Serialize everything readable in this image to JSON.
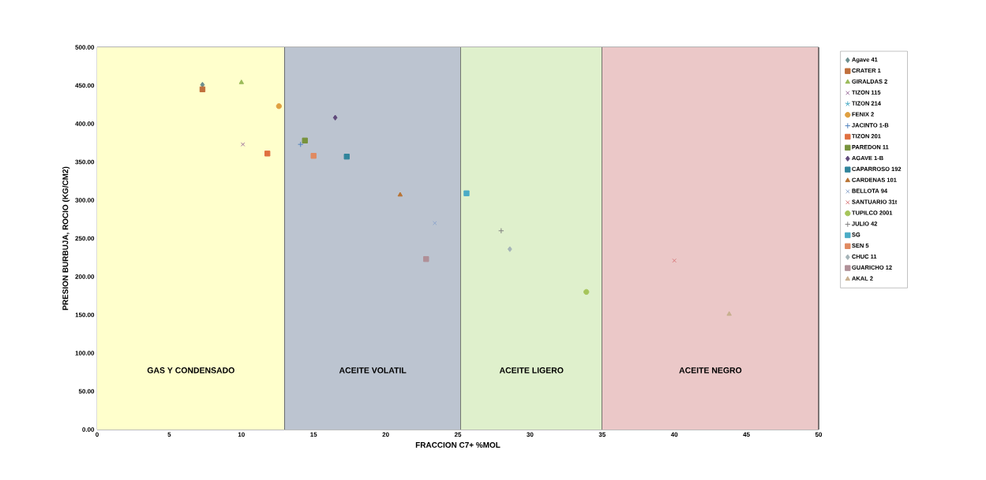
{
  "chart_data": {
    "type": "scatter",
    "xlabel": "FRACCION C7+ %MOL",
    "ylabel": "PRESION BURBUJA, ROCIO (KG/CM2)",
    "xlim": [
      0,
      50
    ],
    "xticks": [
      0,
      5,
      10,
      15,
      20,
      25,
      30,
      35,
      40,
      45,
      50
    ],
    "ylim": [
      0,
      500
    ],
    "yticks": [
      {
        "value": 0,
        "label": "0.00"
      },
      {
        "value": 50,
        "label": "50.00"
      },
      {
        "value": 100,
        "label": "100.00"
      },
      {
        "value": 150,
        "label": "150.00"
      },
      {
        "value": 200,
        "label": "200.00"
      },
      {
        "value": 250,
        "label": "250.00"
      },
      {
        "value": 300,
        "label": "300.00"
      },
      {
        "value": 350,
        "label": "350.00"
      },
      {
        "value": 400,
        "label": "400.00"
      },
      {
        "value": 450,
        "label": "450.00"
      },
      {
        "value": 500,
        "label": "500.00"
      }
    ],
    "grid": "y",
    "legend": "right",
    "bands": [
      {
        "axis": "x",
        "from": 0,
        "to": 13,
        "label": "GAS Y CONDENSADO",
        "color": "#ffffcc"
      },
      {
        "axis": "x",
        "from": 13,
        "to": 25.2,
        "label": "ACEITE VOLATIL",
        "color": "#bcc4d0"
      },
      {
        "axis": "x",
        "from": 25.2,
        "to": 35,
        "label": "ACEITE LIGERO",
        "color": "#dff0cc"
      },
      {
        "axis": "x",
        "from": 35,
        "to": 50,
        "label": "ACEITE NEGRO",
        "color": "#ebc8c8"
      }
    ],
    "series": [
      {
        "name": "Agave 41",
        "color": "#6b8e8e",
        "marker": "diamond",
        "x": [
          7.3
        ],
        "values": [
          451
        ]
      },
      {
        "name": "CRATER 1",
        "color": "#c0703c",
        "marker": "square",
        "x": [
          7.3
        ],
        "values": [
          445
        ]
      },
      {
        "name": "GIRALDAS 2",
        "color": "#9bbb59",
        "marker": "triangle",
        "x": [
          10.0
        ],
        "values": [
          454
        ]
      },
      {
        "name": "TIZON 115",
        "color": "#9c6f9c",
        "marker": "cross",
        "x": [
          10.1
        ],
        "values": [
          373
        ]
      },
      {
        "name": "TIZON 214",
        "color": "#4bacc6",
        "marker": "star",
        "x": [
          null
        ],
        "values": [
          null
        ]
      },
      {
        "name": "FENIX 2",
        "color": "#e0a040",
        "marker": "circle",
        "x": [
          12.6
        ],
        "values": [
          423
        ]
      },
      {
        "name": "JACINTO 1-B",
        "color": "#4f81bd",
        "marker": "plus",
        "x": [
          14.1
        ],
        "values": [
          373
        ]
      },
      {
        "name": "TIZON 201",
        "color": "#e07040",
        "marker": "square",
        "x": [
          11.8
        ],
        "values": [
          361
        ]
      },
      {
        "name": "PAREDON 11",
        "color": "#77933c",
        "marker": "square",
        "x": [
          14.4
        ],
        "values": [
          378
        ]
      },
      {
        "name": "AGAVE 1-B",
        "color": "#604a7b",
        "marker": "diamond",
        "x": [
          16.5
        ],
        "values": [
          408
        ]
      },
      {
        "name": "CAPARROSO 192",
        "color": "#31859c",
        "marker": "square",
        "x": [
          17.3
        ],
        "values": [
          357
        ]
      },
      {
        "name": "CARDENAS 101",
        "color": "#b87333",
        "marker": "triangle",
        "x": [
          21.0
        ],
        "values": [
          307
        ]
      },
      {
        "name": "BELLOTA 94",
        "color": "#8ea6cc",
        "marker": "cross",
        "x": [
          23.4
        ],
        "values": [
          270
        ]
      },
      {
        "name": "SANTUARIO 31t",
        "color": "#d9797a",
        "marker": "cross",
        "x": [
          40.0
        ],
        "values": [
          221
        ]
      },
      {
        "name": "TUPILCO 2001",
        "color": "#a6c55a",
        "marker": "circle",
        "x": [
          33.9
        ],
        "values": [
          180
        ]
      },
      {
        "name": "JULIO 42",
        "color": "#7f7f7f",
        "marker": "plus",
        "x": [
          28.0
        ],
        "values": [
          260
        ]
      },
      {
        "name": "SG",
        "color": "#4bacc6",
        "marker": "square",
        "x": [
          25.6
        ],
        "values": [
          309
        ]
      },
      {
        "name": "SEN 5",
        "color": "#e08a60",
        "marker": "square",
        "x": [
          15.0
        ],
        "values": [
          358
        ]
      },
      {
        "name": "CHUC 11",
        "color": "#a5b4b8",
        "marker": "diamond",
        "x": [
          28.6
        ],
        "values": [
          236
        ]
      },
      {
        "name": "GUARICHO 12",
        "color": "#b09098",
        "marker": "square",
        "x": [
          22.8
        ],
        "values": [
          223
        ]
      },
      {
        "name": "AKAL 2",
        "color": "#c8b090",
        "marker": "triangle",
        "x": [
          43.8
        ],
        "values": [
          151
        ]
      }
    ]
  }
}
